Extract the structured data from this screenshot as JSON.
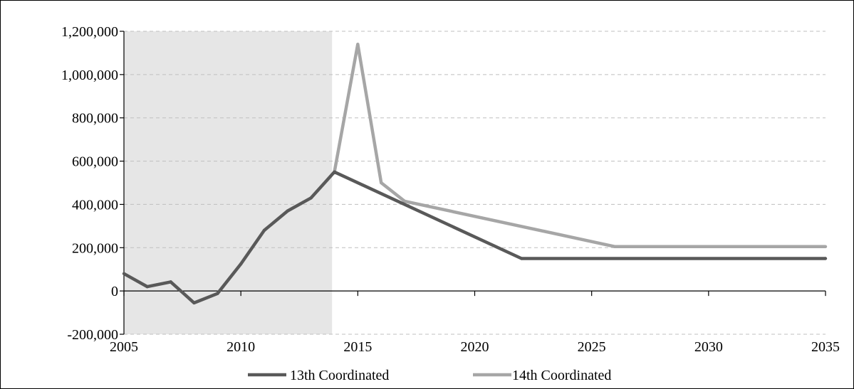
{
  "chart_data": {
    "type": "line",
    "title": "",
    "xlabel": "",
    "ylabel": "",
    "xlim": [
      2005,
      2035
    ],
    "ylim": [
      -200000,
      1200000
    ],
    "x_ticks": [
      2005,
      2010,
      2015,
      2020,
      2025,
      2030,
      2035
    ],
    "x_tick_labels": [
      "2005",
      "2010",
      "2015",
      "2020",
      "2025",
      "2030",
      "2035"
    ],
    "y_ticks": [
      -200000,
      0,
      200000,
      400000,
      600000,
      800000,
      1000000,
      1200000
    ],
    "y_tick_labels": [
      "-200,000",
      "0",
      "200,000",
      "400,000",
      "600,000",
      "800,000",
      "1,000,000",
      "1,200,000"
    ],
    "grid": "horizontal dashed",
    "shaded_region": {
      "x_start": 2005,
      "x_end": 2013.9,
      "color": "#e6e6e6"
    },
    "legend_position": "bottom",
    "series": [
      {
        "name": "13th Coordinated",
        "color": "#595959",
        "points": [
          [
            2005,
            80000
          ],
          [
            2006,
            20000
          ],
          [
            2007,
            42000
          ],
          [
            2008,
            -55000
          ],
          [
            2009,
            -12000
          ],
          [
            2010,
            125000
          ],
          [
            2011,
            280000
          ],
          [
            2012,
            370000
          ],
          [
            2013,
            430000
          ],
          [
            2014,
            550000
          ],
          [
            2022,
            150000
          ],
          [
            2035,
            150000
          ]
        ]
      },
      {
        "name": "14th Coordinated",
        "color": "#a6a6a6",
        "points": [
          [
            2014,
            550000
          ],
          [
            2015,
            1140000
          ],
          [
            2016,
            500000
          ],
          [
            2017,
            415000
          ],
          [
            2026,
            205000
          ],
          [
            2035,
            205000
          ]
        ]
      }
    ]
  }
}
